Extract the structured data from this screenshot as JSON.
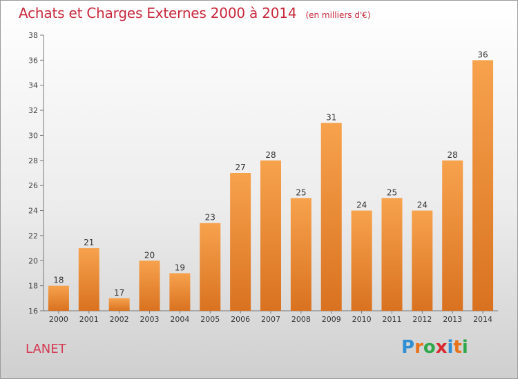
{
  "title": "Achats et Charges Externes 2000 à 2014",
  "unit": "(en milliers d'€)",
  "commune": "LANET",
  "brand": {
    "letters": [
      "P",
      "r",
      "o",
      "x",
      "i",
      "t",
      "i"
    ],
    "colors": [
      "#2f8fd4",
      "#e8731a",
      "#2fa84a",
      "#d9282f",
      "#2f8fd4",
      "#e8731a",
      "#2fa84a"
    ]
  },
  "chart_data": {
    "type": "bar",
    "title": "Achats et Charges Externes 2000 à 2014",
    "xlabel": "",
    "ylabel": "",
    "categories": [
      "2000",
      "2001",
      "2002",
      "2003",
      "2004",
      "2005",
      "2006",
      "2007",
      "2008",
      "2009",
      "2010",
      "2011",
      "2012",
      "2013",
      "2014"
    ],
    "values": [
      18,
      21,
      17,
      20,
      19,
      23,
      27,
      28,
      25,
      31,
      24,
      25,
      24,
      28,
      36
    ],
    "ylim": [
      16,
      38
    ],
    "yticks": [
      16,
      18,
      20,
      22,
      24,
      26,
      28,
      30,
      32,
      34,
      36,
      38
    ],
    "grid": false,
    "bar_color_top": "#f7a24d",
    "bar_color_bottom": "#d97220",
    "data_labels": true
  }
}
